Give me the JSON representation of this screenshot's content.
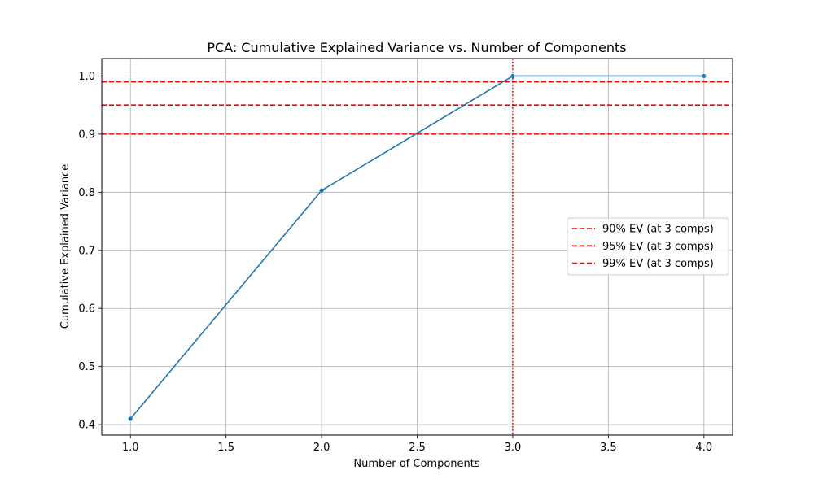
{
  "chart_data": {
    "type": "line",
    "title": "PCA: Cumulative Explained Variance vs. Number of Components",
    "xlabel": "Number of Components",
    "ylabel": "Cumulative Explained Variance",
    "xlim": [
      0.85,
      4.15
    ],
    "ylim": [
      0.382,
      1.03
    ],
    "grid": true,
    "x_ticks": [
      1.0,
      1.5,
      2.0,
      2.5,
      3.0,
      3.5,
      4.0
    ],
    "x_tick_labels": [
      "1.0",
      "1.5",
      "2.0",
      "2.5",
      "3.0",
      "3.5",
      "4.0"
    ],
    "y_ticks": [
      0.4,
      0.5,
      0.6,
      0.7,
      0.8,
      0.9,
      1.0
    ],
    "y_tick_labels": [
      "0.4",
      "0.5",
      "0.6",
      "0.7",
      "0.8",
      "0.9",
      "1.0"
    ],
    "series": [
      {
        "x": [
          1,
          2,
          3,
          4
        ],
        "y": [
          0.41,
          0.803,
          1.0,
          1.0
        ],
        "color": "#1f77b4",
        "marker": "o"
      }
    ],
    "hlines": [
      {
        "y": 0.9,
        "color": "#ff0000",
        "style": "dashed",
        "label": "90% EV (at 3 comps)"
      },
      {
        "y": 0.95,
        "color": "#ff0000",
        "style": "dashed",
        "label": "95% EV (at 3 comps)"
      },
      {
        "y": 0.99,
        "color": "#ff0000",
        "style": "dashed",
        "label": "99% EV (at 3 comps)"
      }
    ],
    "vlines": [
      {
        "x": 3,
        "color": "#cc0000",
        "style": "dotted"
      }
    ],
    "legend_position": "center-right"
  }
}
